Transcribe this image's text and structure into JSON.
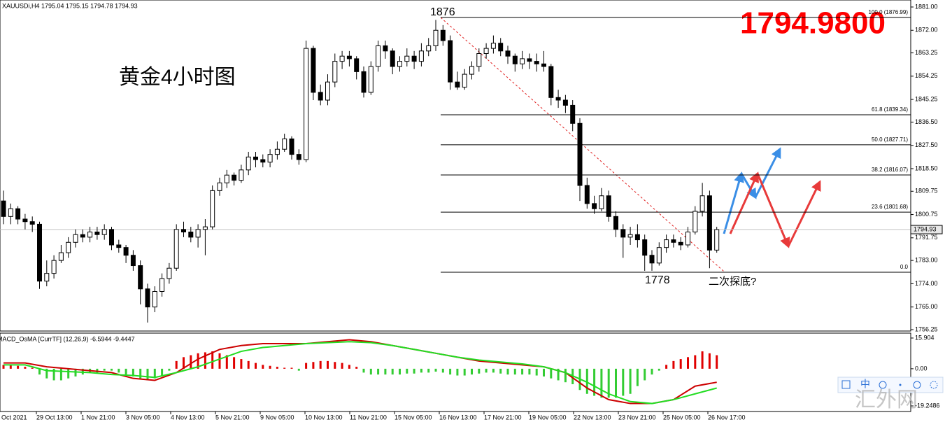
{
  "chart_data": [
    {
      "type": "candlestick",
      "header": "XAUUSDi,H4  1795.04 1795.15 1794.78 1794.93",
      "title": "黄金4小时图",
      "price_display": "1794.9800",
      "ylim": [
        1756.25,
        1881
      ],
      "yticks": [
        {
          "value": 1881,
          "label": "1881.00"
        },
        {
          "value": 1872,
          "label": "1872.00"
        },
        1863.25,
        1854.25,
        1845.25,
        {
          "value": 1836.5,
          "label": "1836.50"
        },
        {
          "value": 1827.5,
          "label": "1827.50"
        },
        {
          "value": 1818.5,
          "label": "1818.50"
        },
        1809.75,
        1800.75,
        1791.75,
        {
          "value": 1783,
          "label": "1783.00"
        },
        {
          "value": 1774,
          "label": "1774.00"
        },
        {
          "value": 1765,
          "label": "1765.00"
        },
        1756.25
      ],
      "up_color": "#ffffff",
      "down_color": "#000000",
      "ohlc": [
        [
          1806,
          1810,
          1797,
          1800
        ],
        [
          1800,
          1805,
          1797,
          1803
        ],
        [
          1803,
          1804,
          1797,
          1799
        ],
        [
          1799,
          1801,
          1795,
          1798
        ],
        [
          1798,
          1800,
          1794,
          1797
        ],
        [
          1797,
          1798,
          1772,
          1775
        ],
        [
          1775,
          1783,
          1773,
          1778
        ],
        [
          1778,
          1785,
          1776,
          1783
        ],
        [
          1783,
          1789,
          1782,
          1786
        ],
        [
          1786,
          1792,
          1784,
          1790
        ],
        [
          1790,
          1795,
          1788,
          1793
        ],
        [
          1793,
          1795,
          1790,
          1792
        ],
        [
          1792,
          1796,
          1790,
          1794
        ],
        [
          1794,
          1796,
          1791,
          1793
        ],
        [
          1793,
          1797,
          1791,
          1795
        ],
        [
          1795,
          1796,
          1787,
          1789
        ],
        [
          1789,
          1791,
          1786,
          1788
        ],
        [
          1788,
          1789,
          1782,
          1785
        ],
        [
          1785,
          1787,
          1779,
          1781
        ],
        [
          1781,
          1783,
          1766,
          1772
        ],
        [
          1772,
          1774,
          1759,
          1765
        ],
        [
          1765,
          1773,
          1763,
          1771
        ],
        [
          1771,
          1778,
          1769,
          1776
        ],
        [
          1776,
          1782,
          1774,
          1780
        ],
        [
          1780,
          1797,
          1779,
          1795
        ],
        [
          1795,
          1798,
          1792,
          1794
        ],
        [
          1794,
          1796,
          1790,
          1792
        ],
        [
          1792,
          1797,
          1788,
          1795
        ],
        [
          1795,
          1799,
          1785,
          1796
        ],
        [
          1796,
          1812,
          1795,
          1810
        ],
        [
          1810,
          1815,
          1808,
          1813
        ],
        [
          1813,
          1818,
          1811,
          1816
        ],
        [
          1816,
          1817,
          1812,
          1814
        ],
        [
          1814,
          1820,
          1813,
          1818
        ],
        [
          1818,
          1825,
          1816,
          1823
        ],
        [
          1823,
          1825,
          1819,
          1822
        ],
        [
          1822,
          1824,
          1819,
          1821
        ],
        [
          1821,
          1826,
          1819,
          1824
        ],
        [
          1824,
          1829,
          1822,
          1826
        ],
        [
          1826,
          1832,
          1825,
          1830
        ],
        [
          1830,
          1831,
          1822,
          1824
        ],
        [
          1824,
          1826,
          1820,
          1822
        ],
        [
          1822,
          1868,
          1821,
          1865
        ],
        [
          1865,
          1866,
          1845,
          1848
        ],
        [
          1848,
          1851,
          1843,
          1845
        ],
        [
          1845,
          1855,
          1843,
          1852
        ],
        [
          1852,
          1863,
          1850,
          1860
        ],
        [
          1860,
          1864,
          1857,
          1862
        ],
        [
          1862,
          1864,
          1858,
          1861
        ],
        [
          1861,
          1862,
          1853,
          1856
        ],
        [
          1856,
          1858,
          1846,
          1848
        ],
        [
          1848,
          1860,
          1847,
          1858
        ],
        [
          1858,
          1868,
          1856,
          1866
        ],
        [
          1866,
          1868,
          1861,
          1864
        ],
        [
          1864,
          1865,
          1855,
          1858
        ],
        [
          1858,
          1862,
          1856,
          1860
        ],
        [
          1860,
          1865,
          1858,
          1862
        ],
        [
          1862,
          1864,
          1857,
          1860
        ],
        [
          1860,
          1867,
          1858,
          1864
        ],
        [
          1864,
          1869,
          1862,
          1866
        ],
        [
          1866,
          1876,
          1864,
          1872
        ],
        [
          1872,
          1874,
          1866,
          1868
        ],
        [
          1868,
          1870,
          1849,
          1852
        ],
        [
          1852,
          1856,
          1849,
          1850
        ],
        [
          1850,
          1857,
          1849,
          1855
        ],
        [
          1855,
          1860,
          1853,
          1858
        ],
        [
          1858,
          1865,
          1856,
          1863
        ],
        [
          1863,
          1867,
          1861,
          1865
        ],
        [
          1865,
          1870,
          1863,
          1867
        ],
        [
          1867,
          1869,
          1862,
          1864
        ],
        [
          1864,
          1866,
          1859,
          1862
        ],
        [
          1862,
          1863,
          1856,
          1859
        ],
        [
          1859,
          1864,
          1857,
          1861
        ],
        [
          1861,
          1863,
          1857,
          1860
        ],
        [
          1860,
          1863,
          1856,
          1859
        ],
        [
          1859,
          1864,
          1856,
          1858
        ],
        [
          1858,
          1859,
          1843,
          1846
        ],
        [
          1846,
          1849,
          1842,
          1845
        ],
        [
          1845,
          1847,
          1840,
          1843
        ],
        [
          1843,
          1845,
          1833,
          1836
        ],
        [
          1836,
          1838,
          1806,
          1812
        ],
        [
          1812,
          1815,
          1803,
          1805
        ],
        [
          1805,
          1808,
          1801,
          1803
        ],
        [
          1803,
          1811,
          1802,
          1808
        ],
        [
          1808,
          1810,
          1798,
          1800
        ],
        [
          1800,
          1802,
          1792,
          1795
        ],
        [
          1795,
          1797,
          1784,
          1792
        ],
        [
          1792,
          1796,
          1789,
          1793
        ],
        [
          1793,
          1797,
          1788,
          1791
        ],
        [
          1791,
          1793,
          1779,
          1785
        ],
        [
          1785,
          1787,
          1779,
          1782
        ],
        [
          1782,
          1790,
          1781,
          1788
        ],
        [
          1788,
          1793,
          1786,
          1791
        ],
        [
          1791,
          1793,
          1788,
          1790
        ],
        [
          1790,
          1792,
          1787,
          1789
        ],
        [
          1789,
          1796,
          1788,
          1794
        ],
        [
          1794,
          1804,
          1793,
          1802
        ],
        [
          1802,
          1813,
          1800,
          1808
        ],
        [
          1808,
          1810,
          1780,
          1787
        ],
        [
          1787,
          1796,
          1786,
          1794.93
        ]
      ],
      "current_price": {
        "value": 1794.93,
        "label": "1794.93"
      },
      "fib_levels": [
        {
          "value": 1876.99,
          "label": "100.0 (1876.99)"
        },
        {
          "value": 1839.34,
          "label": "61.8 (1839.34)"
        },
        {
          "value": 1827.71,
          "label": "50.0 (1827.71)"
        },
        {
          "value": 1816.07,
          "label": "38.2 (1816.07)"
        },
        {
          "value": 1801.68,
          "label": "23.6 (1801.68)"
        },
        {
          "value": 1778.43,
          "label": "0.0"
        }
      ],
      "annotations": [
        "1876",
        "1778",
        "二次探底?"
      ],
      "xlabels": [
        "Oct 2021",
        "29 Oct 13:00",
        "1 Nov 21:00",
        "3 Nov 05:00",
        "4 Nov 13:00",
        "5 Nov 21:00",
        "9 Nov 05:00",
        "10 Nov 13:00",
        "11 Nov 21:00",
        "15 Nov 05:00",
        "16 Nov 13:00",
        "17 Nov 21:00",
        "19 Nov 05:00",
        "22 Nov 13:00",
        "23 Nov 21:00",
        "25 Nov 05:00",
        "26 Nov 17:00"
      ]
    },
    {
      "type": "macd",
      "label": "MACD_OsMA [CurrTF] (12,26,9) -6.5944 -9.4447",
      "ylim": [
        -19.2486,
        15.904
      ],
      "yticks": [
        15.904,
        {
          "value": 0,
          "label": "0.00"
        },
        -19.2486
      ],
      "histogram": {
        "pos_color": "#e00000",
        "neg_color": "#33cc33",
        "values": [
          2,
          2,
          1.5,
          1,
          0.5,
          -3,
          -5,
          -6,
          -6,
          -5,
          -4,
          -3,
          -2,
          -2,
          -1,
          -1,
          -2,
          -3,
          -4,
          -5,
          -6,
          -5,
          -4,
          -1,
          4,
          6,
          7,
          8,
          8.5,
          9,
          8,
          7,
          6,
          5,
          4,
          3,
          2,
          1.5,
          1,
          0.5,
          0.5,
          -1,
          3,
          3.5,
          4,
          4,
          3.5,
          3,
          2,
          1,
          -2,
          -3,
          -3,
          -3,
          -3,
          -3,
          -2.5,
          -2.5,
          -2,
          -2,
          -1.5,
          -2,
          -3,
          -3.5,
          -3.5,
          -3,
          -2.5,
          -2,
          -2,
          -2.5,
          -3,
          -3,
          -3,
          -3,
          -3.5,
          -4,
          -5,
          -6,
          -7,
          -8,
          -11,
          -13,
          -14,
          -15,
          -15,
          -15,
          -14,
          -13,
          -9,
          -6,
          -3,
          -1,
          2,
          4,
          5,
          6,
          7,
          9,
          8,
          7
        ]
      },
      "series": [
        {
          "color": "#cc0000",
          "values": [
            3,
            3,
            1,
            0,
            -1,
            -2,
            -5,
            -6,
            -2,
            5,
            10,
            12,
            13,
            13,
            13,
            14,
            15,
            14,
            12,
            10,
            8,
            6,
            4,
            3,
            2,
            1,
            -2,
            -10,
            -16,
            -18,
            -18,
            -16,
            -9,
            -7
          ]
        },
        {
          "color": "#22dd22",
          "values": [
            2,
            2,
            -1,
            -1.5,
            -2,
            -3,
            -3.5,
            -4.5,
            -2,
            1,
            5,
            9,
            11,
            12,
            13,
            13.5,
            14,
            13.5,
            12,
            10,
            8,
            6,
            4.5,
            3.5,
            2.5,
            1,
            -2,
            -7,
            -13,
            -17,
            -18,
            -16,
            -13,
            -10
          ]
        }
      ]
    }
  ],
  "toolbar": {
    "lang": "中"
  },
  "watermark": "汇外网"
}
